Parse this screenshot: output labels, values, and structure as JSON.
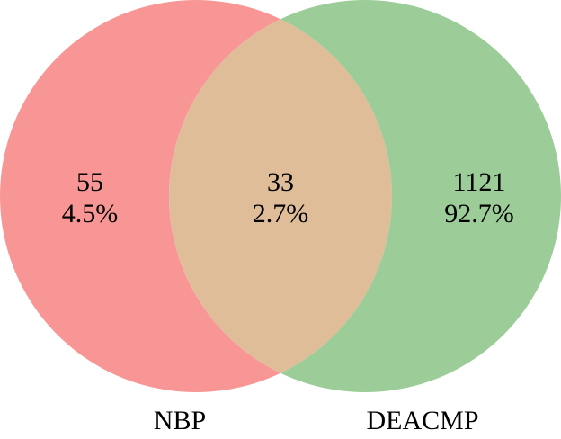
{
  "chart_data": {
    "type": "venn",
    "sets": [
      {
        "name": "NBP",
        "color": "#f89695"
      },
      {
        "name": "DEACMP",
        "color": "#9ccd99"
      }
    ],
    "overlap_color": "#dfbd99",
    "counts": [
      55,
      33,
      1121
    ],
    "percents": [
      4.5,
      2.7,
      92.7
    ],
    "value_labels": [
      "4.5%",
      "2.7%",
      "92.7%"
    ]
  }
}
